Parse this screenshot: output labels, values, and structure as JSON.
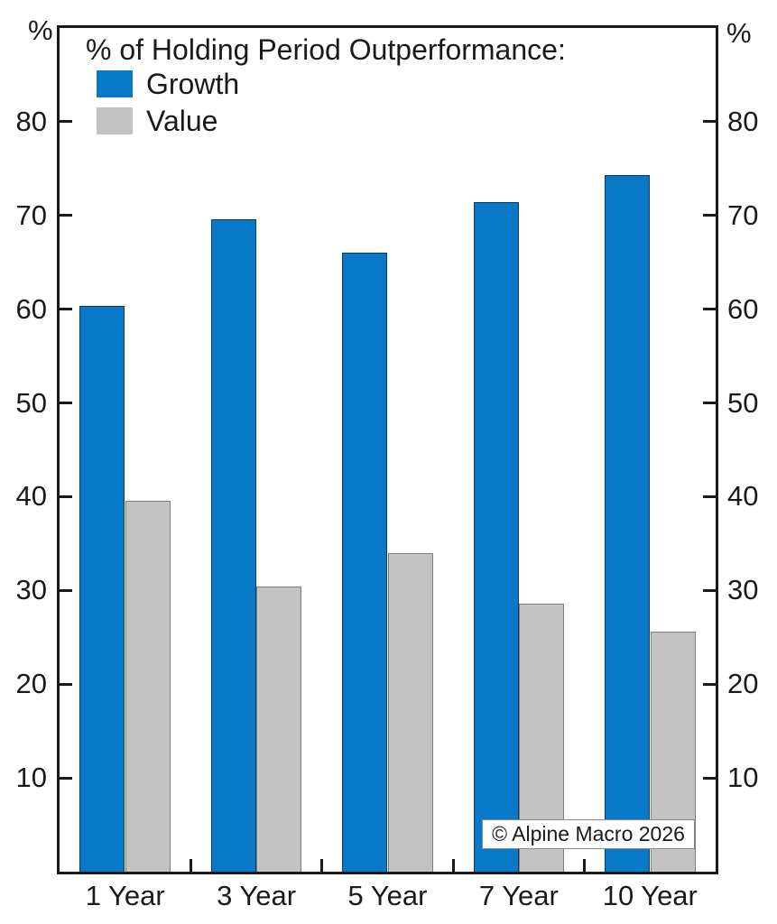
{
  "chart_data": {
    "type": "bar",
    "title": "% of Holding Period Outperformance:",
    "categories": [
      "1 Year",
      "3 Year",
      "5 Year",
      "7 Year",
      "10 Year"
    ],
    "series": [
      {
        "name": "Growth",
        "color": "#0878c8",
        "border_color": "#12395c",
        "values": [
          60.4,
          69.6,
          66.0,
          71.4,
          74.3
        ]
      },
      {
        "name": "Value",
        "color": "#c3c3c3",
        "border_color": "#7d7d7d",
        "values": [
          39.6,
          30.4,
          34.0,
          28.6,
          25.6
        ]
      }
    ],
    "xlabel": "",
    "ylabel": "",
    "y_axis_unit": "%",
    "ylim": [
      0,
      90
    ],
    "yticks": [
      10,
      20,
      30,
      40,
      50,
      60,
      70,
      80
    ],
    "grid": false,
    "legend_position": "top-left",
    "axis_color": "#1a1a1a",
    "background": "#ffffff"
  },
  "annotations": {
    "copyright": "© Alpine Macro 2026"
  }
}
